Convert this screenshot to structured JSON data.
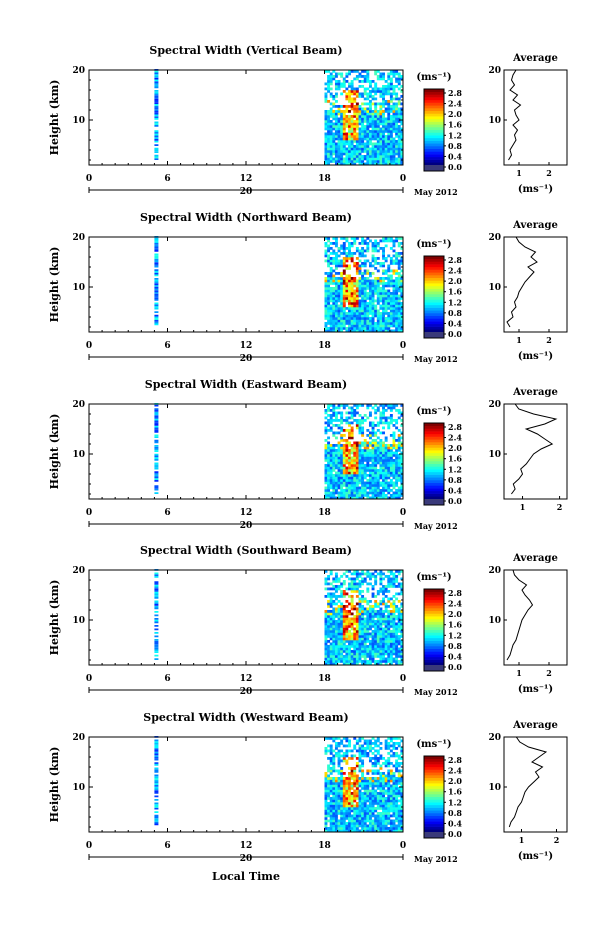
{
  "figure": {
    "xlabel": "Local Time",
    "date_label": "May 2012",
    "day_label": "20",
    "x_ticks": [
      "0",
      "6",
      "12",
      "18",
      "0"
    ],
    "y_ticks": [
      "20",
      "10"
    ],
    "ylabel": "Height (km)",
    "avg_title": "Average",
    "unit_label": "(ms⁻¹)",
    "colorbar_ticks": [
      "2.8",
      "2.4",
      "2.0",
      "1.6",
      "1.2",
      "0.8",
      "0.4",
      "0.0"
    ]
  },
  "chart_data": [
    {
      "type": "heatmap",
      "title": "Spectral Width (Vertical Beam)",
      "xlabel": "",
      "ylabel": "Height (km)",
      "xlim": [
        0,
        24
      ],
      "ylim": [
        1,
        20
      ],
      "colorbar": {
        "label": "(ms⁻¹)",
        "range": [
          0,
          2.8
        ]
      },
      "avg_profile": {
        "xlim": [
          0.5,
          2.6
        ],
        "x_ticks": [
          "1",
          "2"
        ],
        "xlabel": "(ms⁻¹)",
        "ylim": [
          1,
          20
        ],
        "heights": [
          2,
          3,
          4,
          5,
          6,
          7,
          8,
          9,
          10,
          11,
          12,
          13,
          14,
          15,
          16,
          17,
          18,
          19,
          20
        ],
        "values": [
          0.65,
          0.75,
          0.7,
          0.8,
          0.9,
          0.85,
          0.95,
          0.8,
          1.0,
          0.9,
          0.85,
          1.05,
          0.8,
          0.95,
          0.7,
          0.85,
          0.75,
          0.8,
          0.9
        ]
      }
    },
    {
      "type": "heatmap",
      "title": "Spectral Width (Northward Beam)",
      "xlabel": "",
      "ylabel": "Height (km)",
      "xlim": [
        0,
        24
      ],
      "ylim": [
        1,
        20
      ],
      "colorbar": {
        "label": "(ms⁻¹)",
        "range": [
          0,
          2.8
        ]
      },
      "avg_profile": {
        "xlim": [
          0.5,
          2.6
        ],
        "x_ticks": [
          "1",
          "2"
        ],
        "xlabel": "(ms⁻¹)",
        "ylim": [
          1,
          20
        ],
        "heights": [
          2,
          3,
          4,
          5,
          6,
          7,
          8,
          9,
          10,
          11,
          12,
          13,
          14,
          15,
          16,
          17,
          18,
          19,
          20
        ],
        "values": [
          0.7,
          0.6,
          0.8,
          0.75,
          0.9,
          0.85,
          0.95,
          1.0,
          1.1,
          1.2,
          1.35,
          1.5,
          1.3,
          1.6,
          1.4,
          1.55,
          1.2,
          1.0,
          0.9
        ]
      }
    },
    {
      "type": "heatmap",
      "title": "Spectral Width (Eastward Beam)",
      "xlabel": "",
      "ylabel": "Height (km)",
      "xlim": [
        0,
        24
      ],
      "ylim": [
        1,
        20
      ],
      "colorbar": {
        "label": "(ms⁻¹)",
        "range": [
          0,
          2.8
        ]
      },
      "avg_profile": {
        "xlim": [
          0.5,
          2.2
        ],
        "x_ticks": [
          "1",
          "2"
        ],
        "xlabel": "",
        "ylim": [
          1,
          20
        ],
        "heights": [
          2,
          3,
          4,
          5,
          6,
          7,
          8,
          9,
          10,
          11,
          12,
          13,
          14,
          15,
          16,
          17,
          18,
          19,
          20
        ],
        "values": [
          0.7,
          0.8,
          0.75,
          0.9,
          1.0,
          0.95,
          1.1,
          1.2,
          1.3,
          1.5,
          1.8,
          1.6,
          1.4,
          1.1,
          1.6,
          1.9,
          1.3,
          0.9,
          0.8
        ]
      }
    },
    {
      "type": "heatmap",
      "title": "Spectral Width (Southward Beam)",
      "xlabel": "",
      "ylabel": "Height (km)",
      "xlim": [
        0,
        24
      ],
      "ylim": [
        1,
        20
      ],
      "colorbar": {
        "label": "(ms⁻¹)",
        "range": [
          0,
          2.8
        ]
      },
      "avg_profile": {
        "xlim": [
          0.5,
          2.6
        ],
        "x_ticks": [
          "1",
          "2"
        ],
        "xlabel": "(ms⁻¹)",
        "ylim": [
          1,
          20
        ],
        "heights": [
          2,
          3,
          4,
          5,
          6,
          7,
          8,
          9,
          10,
          11,
          12,
          13,
          14,
          15,
          16,
          17,
          18,
          19,
          20
        ],
        "values": [
          0.6,
          0.7,
          0.75,
          0.8,
          0.9,
          0.95,
          1.0,
          1.05,
          1.1,
          1.2,
          1.3,
          1.45,
          1.35,
          1.2,
          1.1,
          1.25,
          1.0,
          0.85,
          0.8
        ]
      }
    },
    {
      "type": "heatmap",
      "title": "Spectral Width (Westward Beam)",
      "xlabel": "",
      "ylabel": "Height (km)",
      "xlim": [
        0,
        24
      ],
      "ylim": [
        1,
        20
      ],
      "colorbar": {
        "label": "(ms⁻¹)",
        "range": [
          0,
          2.8
        ]
      },
      "avg_profile": {
        "xlim": [
          0.5,
          2.3
        ],
        "x_ticks": [
          "1",
          "2"
        ],
        "xlabel": "(ms⁻¹)",
        "ylim": [
          1,
          20
        ],
        "heights": [
          2,
          3,
          4,
          5,
          6,
          7,
          8,
          9,
          10,
          11,
          12,
          13,
          14,
          15,
          16,
          17,
          18,
          19,
          20
        ],
        "values": [
          0.65,
          0.7,
          0.8,
          0.85,
          0.9,
          1.0,
          1.05,
          1.1,
          1.2,
          1.35,
          1.5,
          1.4,
          1.6,
          1.3,
          1.5,
          1.7,
          1.2,
          0.95,
          0.85
        ]
      }
    }
  ]
}
